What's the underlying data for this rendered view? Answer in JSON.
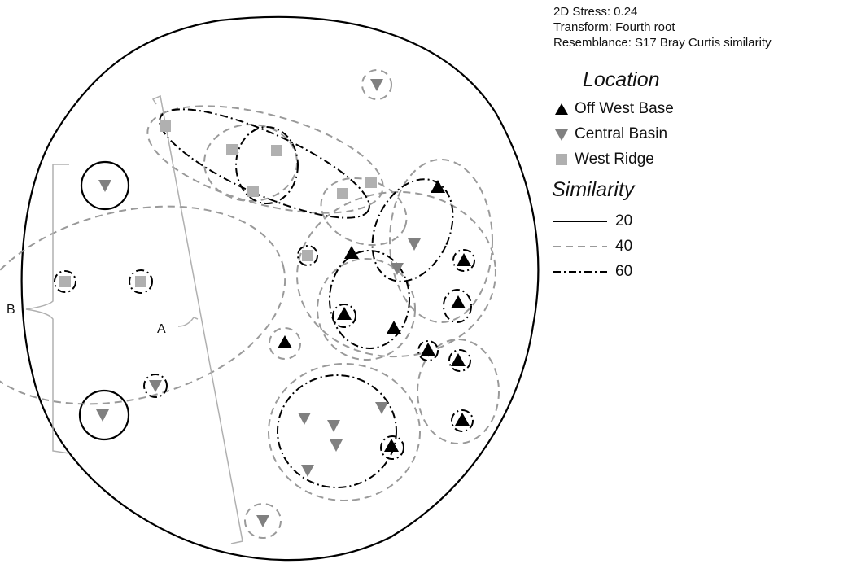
{
  "info": {
    "stress": "2D Stress: 0.24",
    "transform": "Transform: Fourth root",
    "resemblance": "Resemblance: S17 Bray Curtis similarity"
  },
  "legend": {
    "location_title": "Location",
    "location_items": [
      {
        "label": "Off West Base",
        "marker": "triangle-up",
        "color": "#000000"
      },
      {
        "label": "Central Basin",
        "marker": "triangle-down",
        "color": "#808080"
      },
      {
        "label": "West Ridge",
        "marker": "square",
        "color": "#b0b0b0"
      }
    ],
    "similarity_title": "Similarity",
    "similarity_items": [
      {
        "label": "20",
        "style": "solid"
      },
      {
        "label": "40",
        "style": "dashed"
      },
      {
        "label": "60",
        "style": "dash-dot"
      }
    ]
  },
  "annotations": {
    "group_a": "A",
    "group_b": "B"
  },
  "chart_data": {
    "type": "scatter",
    "subtype": "nMDS ordination",
    "stress": 0.24,
    "series": [
      {
        "name": "Off West Base",
        "marker": "triangle-up",
        "color": "#000000",
        "points": [
          [
            538,
            230
          ],
          [
            432,
            311
          ],
          [
            570,
            320
          ],
          [
            423,
            386
          ],
          [
            484,
            403
          ],
          [
            563,
            372
          ],
          [
            526,
            430
          ],
          [
            563,
            443
          ],
          [
            350,
            421
          ],
          [
            568,
            516
          ],
          [
            481,
            548
          ]
        ]
      },
      {
        "name": "Central Basin",
        "marker": "triangle-down",
        "color": "#808080",
        "points": [
          [
            463,
            104
          ],
          [
            129,
            228
          ],
          [
            509,
            300
          ],
          [
            488,
            330
          ],
          [
            191,
            474
          ],
          [
            126,
            510
          ],
          [
            374,
            514
          ],
          [
            410,
            523
          ],
          [
            469,
            501
          ],
          [
            413,
            547
          ],
          [
            378,
            578
          ],
          [
            323,
            640
          ]
        ]
      },
      {
        "name": "West Ridge",
        "marker": "square",
        "color": "#b0b0b0",
        "points": [
          [
            203,
            155
          ],
          [
            285,
            184
          ],
          [
            340,
            185
          ],
          [
            311,
            235
          ],
          [
            421,
            238
          ],
          [
            456,
            224
          ],
          [
            378,
            314
          ],
          [
            80,
            346
          ],
          [
            173,
            346
          ]
        ]
      }
    ],
    "similarity_levels": [
      20,
      40,
      60
    ],
    "x_axis": "none",
    "y_axis": "none"
  },
  "colors": {
    "off_west_base": "#000000",
    "central_basin": "#808080",
    "west_ridge": "#b0b0b0",
    "line_20": "#000000",
    "line_40": "#9a9a9a",
    "line_60": "#000000",
    "bracket": "#b0b0b0"
  }
}
